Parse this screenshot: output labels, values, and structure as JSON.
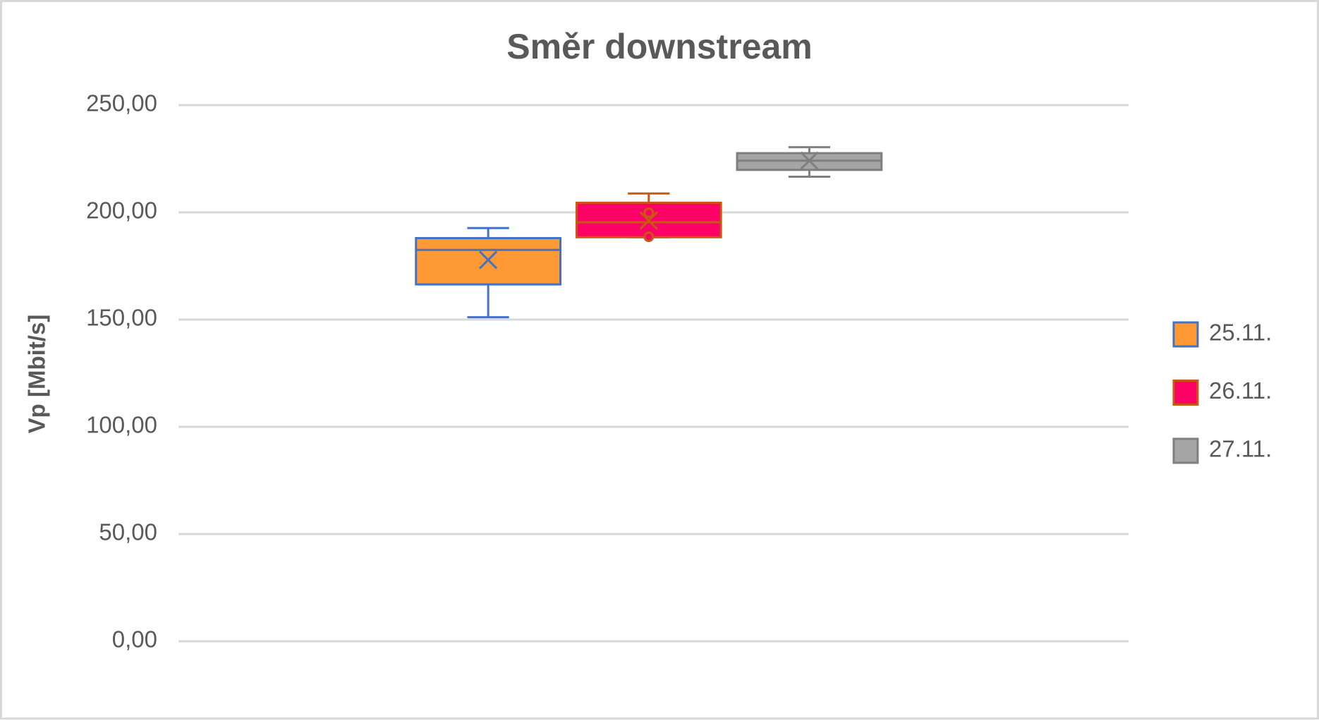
{
  "chart_data": {
    "type": "box",
    "title": "Směr downstream",
    "y_label": "Vp [Mbit/s]",
    "ylim": [
      0,
      250
    ],
    "yticks": [
      {
        "value": 0,
        "label": "0,00"
      },
      {
        "value": 50,
        "label": "50,00"
      },
      {
        "value": 100,
        "label": "100,00"
      },
      {
        "value": 150,
        "label": "150,00"
      },
      {
        "value": 200,
        "label": "200,00"
      },
      {
        "value": 250,
        "label": "250,00"
      }
    ],
    "grid": true,
    "legend": "right",
    "series": [
      {
        "name": "25.11.",
        "color": "#FF9933",
        "stroke": "#4472C4",
        "min": 151.1,
        "q1": 166.4,
        "median": 182.5,
        "q3": 188.0,
        "max": 192.7,
        "mean": 177.8,
        "outliers": []
      },
      {
        "name": "26.11.",
        "color": "#FF0066",
        "stroke": "#C55A11",
        "min": 188.4,
        "q1": 188.4,
        "median": 195.4,
        "q3": 204.5,
        "max": 208.8,
        "mean": 196.2,
        "outliers": [
          188.6,
          199.8
        ]
      },
      {
        "name": "27.11.",
        "color": "#A5A5A5",
        "stroke": "#7F7F7F",
        "min": 216.6,
        "q1": 219.8,
        "median": 224.1,
        "q3": 227.6,
        "max": 230.4,
        "mean": 224.1,
        "outliers": []
      }
    ]
  }
}
